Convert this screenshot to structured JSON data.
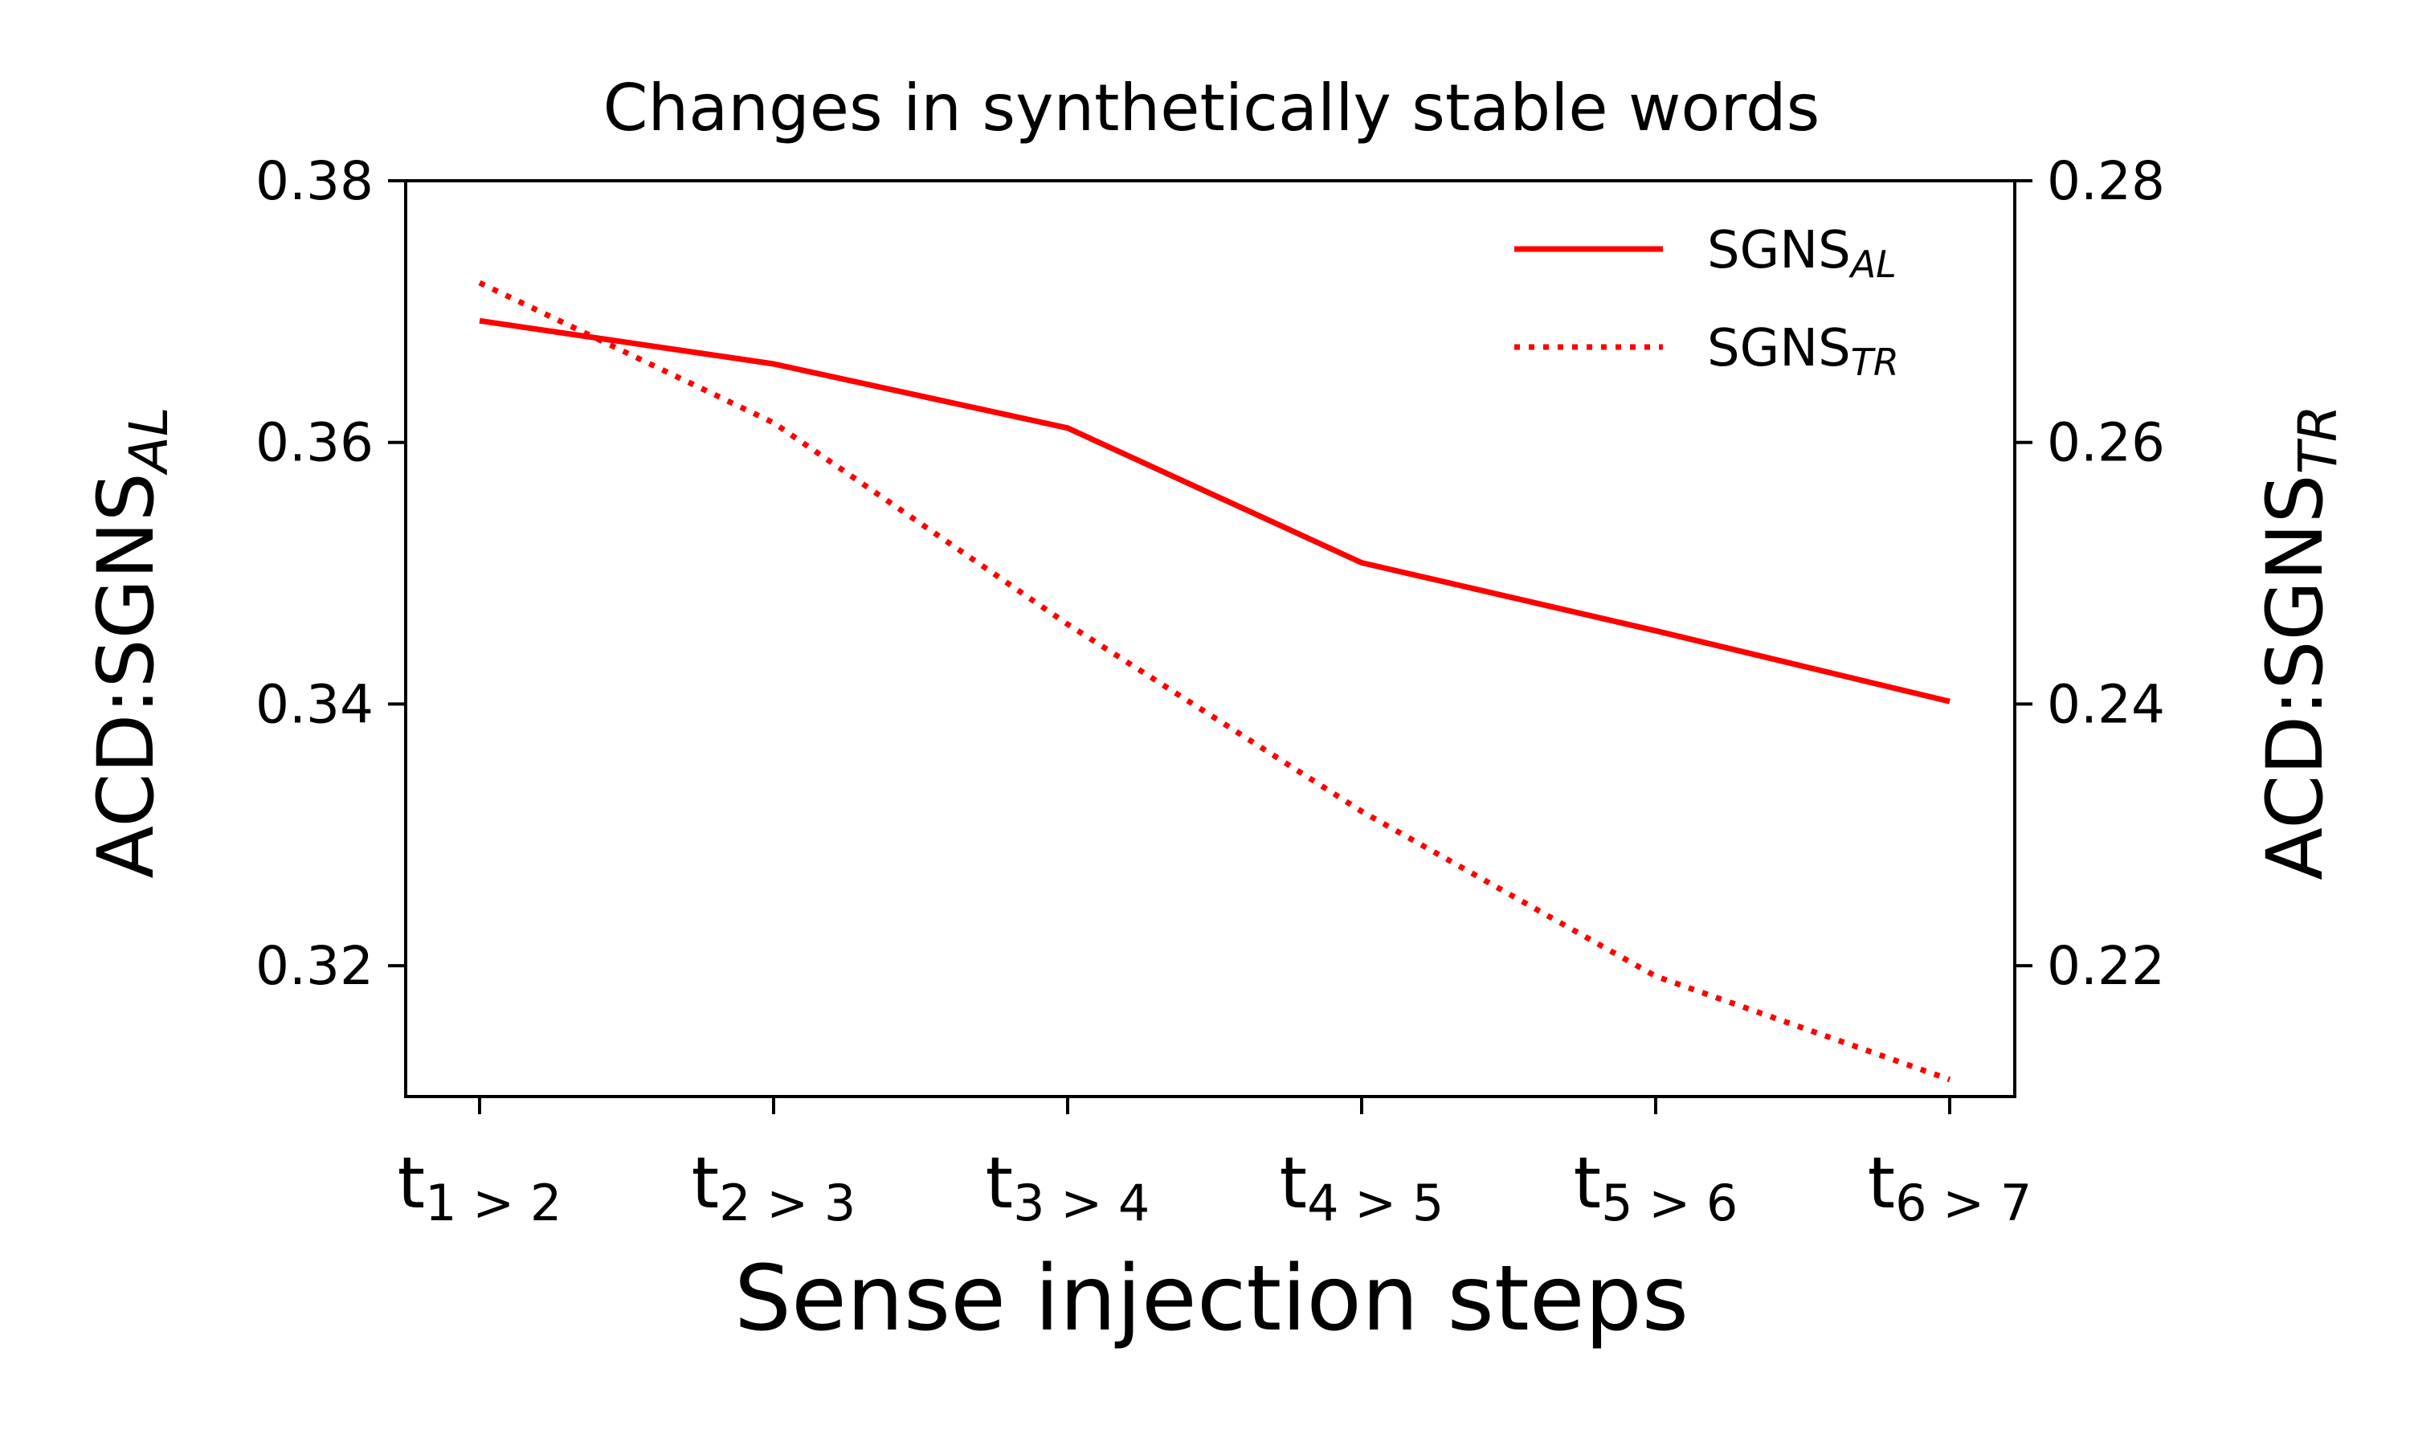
{
  "chart_data": {
    "type": "line",
    "title": "Changes in synthetically stable words",
    "xlabel": "Sense injection steps",
    "ylabel_left": {
      "main": "ACD:SGNS",
      "sub": "AL"
    },
    "ylabel_right": {
      "main": "ACD:SGNS",
      "sub": "TR"
    },
    "categories": [
      {
        "main": "t",
        "sub": "1 > 2"
      },
      {
        "main": "t",
        "sub": "2 > 3"
      },
      {
        "main": "t",
        "sub": "3 > 4"
      },
      {
        "main": "t",
        "sub": "4 > 5"
      },
      {
        "main": "t",
        "sub": "5 > 6"
      },
      {
        "main": "t",
        "sub": "6 > 7"
      }
    ],
    "ylim_left": [
      0.31,
      0.38
    ],
    "ylim_right": [
      0.21,
      0.28
    ],
    "yticks_left": [
      "0.32",
      "0.34",
      "0.36",
      "0.38"
    ],
    "yticks_right": [
      "0.22",
      "0.24",
      "0.26",
      "0.28"
    ],
    "series": [
      {
        "name": "SGNS",
        "name_sub": "AL",
        "axis": "left",
        "style": "solid",
        "color": "#ff0000",
        "values": [
          0.3693,
          0.366,
          0.3611,
          0.3508,
          0.3456,
          0.3402
        ]
      },
      {
        "name": "SGNS",
        "name_sub": "TR",
        "axis": "right",
        "style": "dotted",
        "color": "#ff0000",
        "values": [
          0.2722,
          0.2615,
          0.2461,
          0.2318,
          0.2192,
          0.2113
        ]
      }
    ],
    "legend_position": "top-right",
    "grid": false
  }
}
